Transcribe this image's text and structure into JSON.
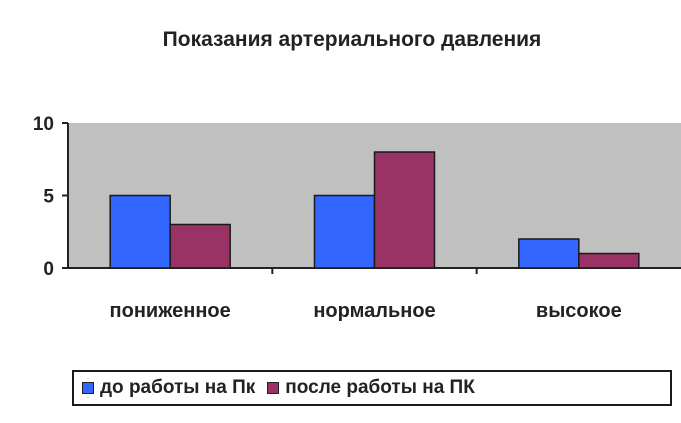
{
  "chart_data": {
    "type": "bar",
    "title": "Показания артериального давления",
    "categories": [
      "пониженное",
      "нормальное",
      "высокое"
    ],
    "series": [
      {
        "name": "до работы на Пк",
        "values": [
          5,
          5,
          2
        ],
        "color": "#3366ff"
      },
      {
        "name": "после работы на ПК",
        "values": [
          3,
          8,
          1
        ],
        "color": "#993366"
      }
    ],
    "y_ticks": [
      "0",
      "5",
      "10"
    ],
    "ylim": [
      0,
      10
    ],
    "grid": false,
    "legend_position": "bottom",
    "plot_background": "#c0c0c0"
  }
}
